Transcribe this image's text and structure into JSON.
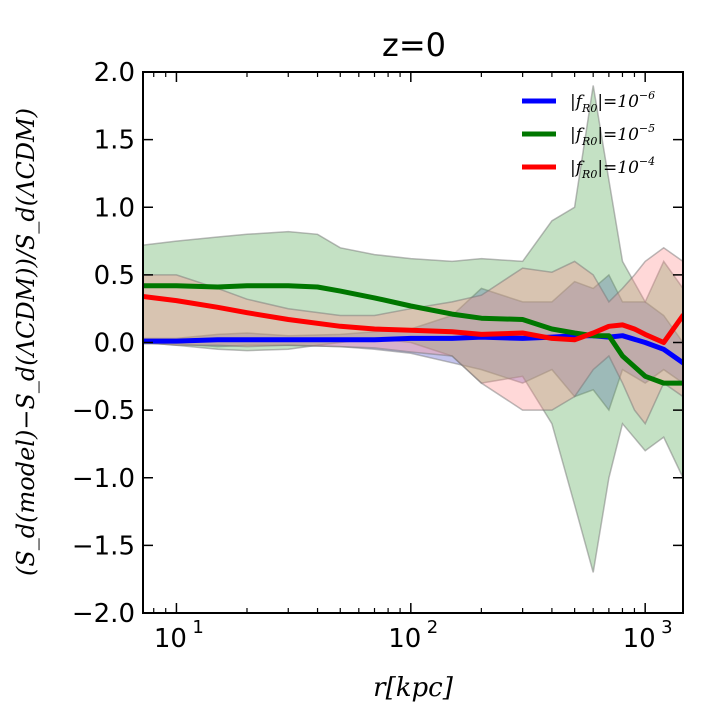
{
  "chart_data": {
    "type": "line",
    "title": "z=0",
    "xlabel": "r[kpc]",
    "ylabel": "(S_d(model)−S_d(ΛCDM))/S_d(ΛCDM)",
    "xscale": "log",
    "xlim": [
      7.2,
      1450
    ],
    "ylim": [
      -2.0,
      2.0
    ],
    "yticks": [
      "2.0",
      "1.5",
      "1.0",
      "0.5",
      "0.0",
      "−0.5",
      "−1.0",
      "−1.5",
      "−2.0"
    ],
    "xticks": [
      {
        "base": "10",
        "exp": "1",
        "value": 10
      },
      {
        "base": "10",
        "exp": "2",
        "value": 100
      },
      {
        "base": "10",
        "exp": "3",
        "value": 1000
      }
    ],
    "legend_position": "top-right",
    "series": [
      {
        "name": "|f_R0|=10^-6",
        "legend_label": "|fR0|=10",
        "legend_sub": "R0",
        "legend_exp": "−6",
        "color": "#0000ff",
        "band_color": "#5555cc",
        "x": [
          7.2,
          10,
          15,
          20,
          30,
          50,
          70,
          100,
          150,
          200,
          300,
          400,
          500,
          600,
          700,
          800,
          1000,
          1200,
          1450
        ],
        "y": [
          0.01,
          0.01,
          0.02,
          0.02,
          0.02,
          0.02,
          0.02,
          0.03,
          0.03,
          0.04,
          0.03,
          0.04,
          0.05,
          0.05,
          0.04,
          0.05,
          0.0,
          -0.05,
          -0.15
        ],
        "lo": [
          -0.01,
          -0.01,
          -0.03,
          -0.02,
          -0.02,
          -0.03,
          -0.05,
          -0.08,
          -0.15,
          -0.2,
          -0.3,
          -0.2,
          -0.4,
          -0.35,
          -0.5,
          -0.2,
          -0.3,
          -0.2,
          -0.3
        ],
        "hi": [
          0.03,
          0.03,
          0.06,
          0.07,
          0.05,
          0.06,
          0.08,
          0.1,
          0.2,
          0.4,
          0.3,
          0.3,
          0.45,
          0.4,
          0.5,
          0.3,
          0.3,
          0.2,
          0.0
        ]
      },
      {
        "name": "|f_R0|=10^-5",
        "legend_label": "|fR0|=10",
        "legend_sub": "R0",
        "legend_exp": "−5",
        "color": "#007700",
        "band_color": "#55aa55",
        "x": [
          7.2,
          10,
          15,
          20,
          30,
          40,
          50,
          70,
          100,
          150,
          200,
          300,
          400,
          500,
          600,
          700,
          800,
          1000,
          1200,
          1450
        ],
        "y": [
          0.42,
          0.42,
          0.41,
          0.42,
          0.42,
          0.41,
          0.38,
          0.33,
          0.27,
          0.21,
          0.18,
          0.17,
          0.1,
          0.07,
          0.05,
          0.05,
          -0.1,
          -0.25,
          -0.3,
          -0.3
        ],
        "lo": [
          0.0,
          -0.02,
          -0.05,
          -0.06,
          -0.05,
          -0.02,
          0.0,
          0.03,
          0.0,
          -0.1,
          -0.3,
          -0.25,
          -0.6,
          -1.2,
          -1.7,
          -1.0,
          -0.6,
          -0.8,
          -0.7,
          -1.0
        ],
        "hi": [
          0.72,
          0.75,
          0.78,
          0.8,
          0.82,
          0.8,
          0.7,
          0.65,
          0.62,
          0.6,
          0.62,
          0.6,
          0.9,
          1.0,
          1.9,
          1.2,
          0.6,
          0.3,
          0.6,
          0.4
        ]
      },
      {
        "name": "|f_R0|=10^-4",
        "legend_label": "|fR0|=10",
        "legend_sub": "R0",
        "legend_exp": "−4",
        "color": "#ff0000",
        "band_color": "#ff9090",
        "x": [
          7.2,
          10,
          15,
          20,
          30,
          50,
          70,
          100,
          150,
          200,
          300,
          400,
          500,
          600,
          700,
          800,
          900,
          1000,
          1200,
          1450
        ],
        "y": [
          0.34,
          0.31,
          0.26,
          0.22,
          0.17,
          0.12,
          0.1,
          0.09,
          0.08,
          0.06,
          0.07,
          0.03,
          0.02,
          0.07,
          0.12,
          0.13,
          0.1,
          0.06,
          0.0,
          0.2
        ],
        "lo": [
          0.0,
          -0.02,
          -0.02,
          -0.03,
          -0.02,
          -0.03,
          -0.04,
          -0.07,
          -0.1,
          -0.3,
          -0.5,
          -0.5,
          -0.4,
          -0.2,
          -0.1,
          -0.3,
          -0.5,
          -0.6,
          -0.3,
          -0.4
        ],
        "hi": [
          0.5,
          0.5,
          0.4,
          0.32,
          0.25,
          0.2,
          0.2,
          0.25,
          0.3,
          0.35,
          0.55,
          0.52,
          0.6,
          0.5,
          0.3,
          0.4,
          0.5,
          0.6,
          0.7,
          0.6
        ]
      }
    ]
  }
}
